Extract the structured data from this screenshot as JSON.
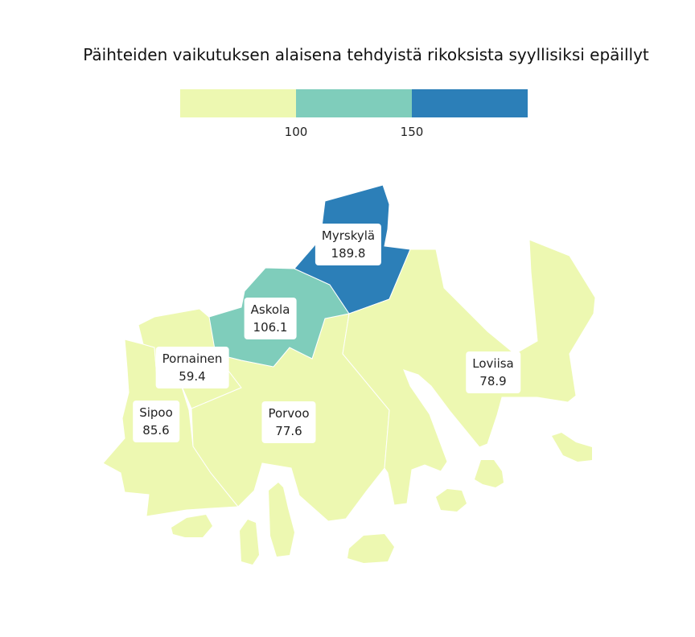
{
  "title": "Päihteiden vaikutuksen alaisena tehdyistä rikoksista syyllisiksi epäillyt",
  "colors": {
    "low": "#edf8b1",
    "mid": "#7fcdbb",
    "high": "#2c7fb8"
  },
  "legend": {
    "ticks": [
      "100",
      "150"
    ]
  },
  "municipalities": [
    {
      "name": "Myrskylä",
      "value": "189.8",
      "class": "high"
    },
    {
      "name": "Askola",
      "value": "106.1",
      "class": "mid"
    },
    {
      "name": "Pornainen",
      "value": "59.4",
      "class": "low"
    },
    {
      "name": "Loviisa",
      "value": "78.9",
      "class": "low"
    },
    {
      "name": "Sipoo",
      "value": "85.6",
      "class": "low"
    },
    {
      "name": "Porvoo",
      "value": "77.6",
      "class": "low"
    }
  ]
}
